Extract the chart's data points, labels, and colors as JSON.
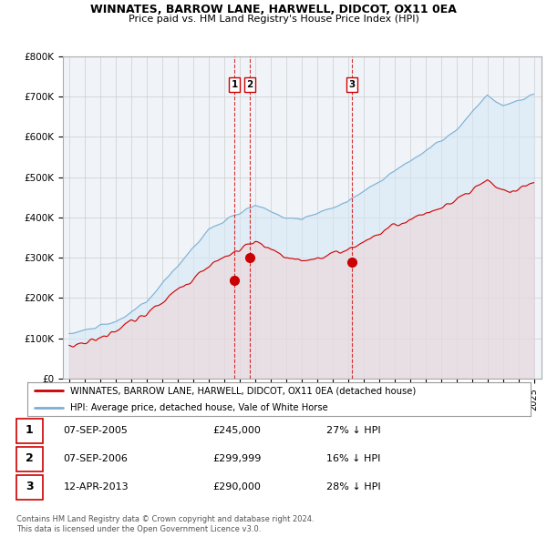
{
  "title": "WINNATES, BARROW LANE, HARWELL, DIDCOT, OX11 0EA",
  "subtitle": "Price paid vs. HM Land Registry's House Price Index (HPI)",
  "legend_line1": "WINNATES, BARROW LANE, HARWELL, DIDCOT, OX11 0EA (detached house)",
  "legend_line2": "HPI: Average price, detached house, Vale of White Horse",
  "footnote": "Contains HM Land Registry data © Crown copyright and database right 2024.\nThis data is licensed under the Open Government Licence v3.0.",
  "sale_color": "#cc0000",
  "hpi_color": "#7ab0d4",
  "hpi_fill": "#d6e8f5",
  "vline_color": "#cc0000",
  "ylim": [
    0,
    800000
  ],
  "yticks": [
    0,
    100000,
    200000,
    300000,
    400000,
    500000,
    600000,
    700000,
    800000
  ],
  "ytick_labels": [
    "£0",
    "£100K",
    "£200K",
    "£300K",
    "£400K",
    "£500K",
    "£600K",
    "£700K",
    "£800K"
  ],
  "transactions": [
    {
      "date_num": 2005.68,
      "price": 245000,
      "label": "1"
    },
    {
      "date_num": 2006.68,
      "price": 299999,
      "label": "2"
    },
    {
      "date_num": 2013.27,
      "price": 290000,
      "label": "3"
    }
  ],
  "table_rows": [
    {
      "num": "1",
      "date": "07-SEP-2005",
      "price": "£245,000",
      "pct": "27% ↓ HPI"
    },
    {
      "num": "2",
      "date": "07-SEP-2006",
      "price": "£299,999",
      "pct": "16% ↓ HPI"
    },
    {
      "num": "3",
      "date": "12-APR-2013",
      "price": "£290,000",
      "pct": "28% ↓ HPI"
    }
  ]
}
